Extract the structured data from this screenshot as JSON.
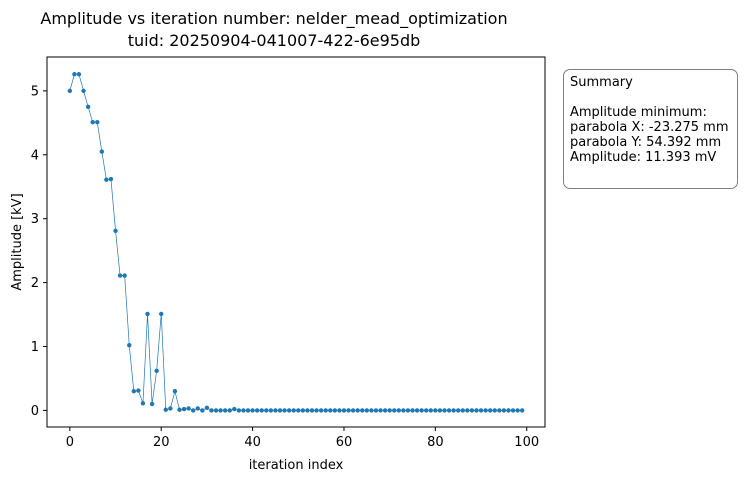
{
  "chart_data": {
    "type": "line",
    "title": "Amplitude vs iteration number: nelder_mead_optimization",
    "subtitle": "tuid: 20250904-041007-422-6e95db",
    "xlabel": "iteration index",
    "ylabel": "Amplitude [kV]",
    "xlim": [
      -5,
      104
    ],
    "ylim": [
      -0.26,
      5.53
    ],
    "x_ticks": [
      "0",
      "20",
      "40",
      "60",
      "80",
      "100"
    ],
    "y_ticks": [
      "0",
      "1",
      "2",
      "3",
      "4",
      "5"
    ],
    "grid": false,
    "marker": "circle",
    "color": "#1f77b4",
    "series": [
      {
        "x": [
          0,
          1,
          2,
          3,
          4,
          5,
          6,
          7,
          8,
          9,
          10,
          11,
          12,
          13,
          14,
          15,
          16,
          17,
          18,
          19,
          20,
          21,
          22,
          23,
          24,
          25,
          26,
          27,
          28,
          29,
          30,
          31,
          32,
          33,
          34,
          35,
          36,
          37,
          38,
          39,
          40,
          41,
          42,
          43,
          44,
          45,
          46,
          47,
          48,
          49,
          50,
          51,
          52,
          53,
          54,
          55,
          56,
          57,
          58,
          59,
          60,
          61,
          62,
          63,
          64,
          65,
          66,
          67,
          68,
          69,
          70,
          71,
          72,
          73,
          74,
          75,
          76,
          77,
          78,
          79,
          80,
          81,
          82,
          83,
          84,
          85,
          86,
          87,
          88,
          89,
          90,
          91,
          92,
          93,
          94,
          95,
          96,
          97,
          98,
          99
        ],
        "y": [
          5.0,
          5.26,
          5.26,
          5.0,
          4.75,
          4.51,
          4.51,
          4.05,
          3.61,
          3.62,
          2.81,
          2.11,
          2.11,
          1.02,
          0.3,
          0.31,
          0.11,
          1.51,
          0.1,
          0.62,
          1.51,
          0.01,
          0.03,
          0.3,
          0.01,
          0.02,
          0.03,
          0.0,
          0.03,
          0.0,
          0.04,
          0.0,
          0.0,
          0.0,
          0.0,
          0.0,
          0.02,
          0.0,
          0.0,
          0.0,
          0.0,
          0.0,
          0.0,
          0.0,
          0.0,
          0.0,
          0.0,
          0.0,
          0.0,
          0.0,
          0.0,
          0.0,
          0.0,
          0.0,
          0.0,
          0.0,
          0.0,
          0.0,
          0.0,
          0.0,
          0.0,
          0.0,
          0.0,
          0.0,
          0.0,
          0.0,
          0.0,
          0.0,
          0.0,
          0.0,
          0.0,
          0.0,
          0.0,
          0.0,
          0.0,
          0.0,
          0.0,
          0.0,
          0.0,
          0.0,
          0.0,
          0.0,
          0.0,
          0.0,
          0.0,
          0.0,
          0.0,
          0.0,
          0.0,
          0.0,
          0.0,
          0.0,
          0.0,
          0.0,
          0.0,
          0.0,
          0.0,
          0.0,
          0.0,
          0.0
        ]
      }
    ]
  },
  "summary": {
    "heading": "Summary",
    "line1": "Amplitude minimum:",
    "line2": "parabola X: -23.275 mm",
    "line3": "parabola Y: 54.392 mm",
    "line4": "Amplitude: 11.393 mV"
  }
}
